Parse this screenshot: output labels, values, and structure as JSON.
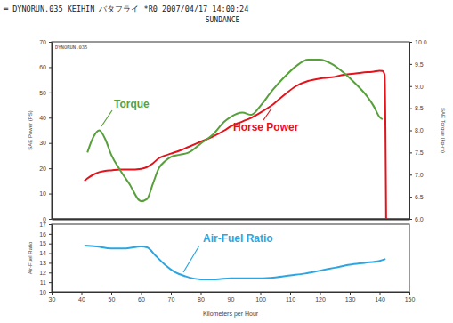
{
  "chart_data": [
    {
      "type": "line",
      "title": "═ DYNORUN.035   KEIHIN   バタフライ   *R0   2007/04/17 14:00:24",
      "subtitle": "SUNDANCE",
      "annotations": [
        {
          "text": "DYNORUN.035"
        }
      ],
      "y_label": "SAE Power (PS)",
      "y2_label": "SAE Torque (kg-m)",
      "xlim": [
        30,
        150
      ],
      "ylim": [
        0,
        70
      ],
      "yticks": [
        0,
        10,
        20,
        30,
        40,
        50,
        60,
        70
      ],
      "y2lim": [
        6,
        10
      ],
      "y2ticks": [
        {
          "value": 6,
          "label": "6.0"
        },
        6.5,
        {
          "value": 7,
          "label": "7.0"
        },
        7.5,
        {
          "value": 8,
          "label": "8.0"
        },
        8.5,
        {
          "value": 9,
          "label": "9.0"
        },
        9.5,
        {
          "value": 10,
          "label": "10.0"
        }
      ],
      "tick_labels": "y",
      "x": [
        41,
        42,
        44,
        46,
        48,
        50,
        53,
        56,
        60,
        62,
        64,
        66,
        68,
        70,
        73,
        76,
        80,
        84,
        88,
        90,
        94,
        97,
        100,
        104,
        108,
        112,
        116,
        120,
        124,
        128,
        132,
        136,
        138,
        140,
        141,
        141.7,
        142.2
      ],
      "series": [
        {
          "name": "Horse Power",
          "color": "#e3121b",
          "values": [
            15,
            16,
            17.5,
            18.5,
            19,
            19.2,
            19.5,
            19.5,
            19.8,
            20.5,
            22,
            24,
            25,
            25.8,
            27,
            28.5,
            30.5,
            32.5,
            35,
            36.5,
            38.5,
            40,
            42,
            45,
            49,
            52.5,
            54.5,
            55.5,
            56,
            57,
            57.5,
            58,
            58.2,
            58.6,
            58.5,
            57,
            0
          ]
        },
        {
          "name": "Torque",
          "color": "#58a03c",
          "axis": "y2",
          "values": [
            null,
            7.5,
            7.85,
            8.0,
            7.8,
            7.45,
            7.1,
            6.8,
            6.4,
            6.45,
            6.8,
            7.15,
            7.3,
            7.4,
            7.45,
            7.5,
            7.7,
            7.9,
            8.2,
            8.3,
            8.4,
            8.35,
            8.55,
            8.9,
            9.2,
            9.45,
            9.6,
            9.6,
            9.5,
            9.3,
            9.05,
            8.75,
            8.55,
            8.3,
            8.25,
            null,
            null
          ]
        }
      ]
    },
    {
      "type": "line",
      "x_label": "Kilometers per Hour",
      "y_label": "Air-Fuel Ratio",
      "xlim": [
        30,
        150
      ],
      "xticks": [
        30,
        40,
        50,
        60,
        70,
        80,
        90,
        100,
        110,
        120,
        130,
        140,
        150
      ],
      "ylim": [
        10,
        17
      ],
      "yticks": [
        10,
        11,
        12,
        13,
        14,
        15,
        16,
        17
      ],
      "x": [
        41,
        45,
        50,
        55,
        60,
        62,
        65,
        68,
        71,
        75,
        80,
        85,
        90,
        95,
        100,
        105,
        110,
        115,
        120,
        125,
        130,
        135,
        140,
        142
      ],
      "series": [
        {
          "name": "Air-Fuel Ratio",
          "color": "#2ba6e2",
          "values": [
            14.8,
            14.7,
            14.5,
            14.5,
            14.7,
            14.6,
            13.7,
            12.8,
            12.1,
            11.6,
            11.3,
            11.3,
            11.4,
            11.4,
            11.4,
            11.5,
            11.7,
            11.9,
            12.2,
            12.5,
            12.8,
            13.0,
            13.2,
            13.4
          ]
        }
      ]
    }
  ]
}
